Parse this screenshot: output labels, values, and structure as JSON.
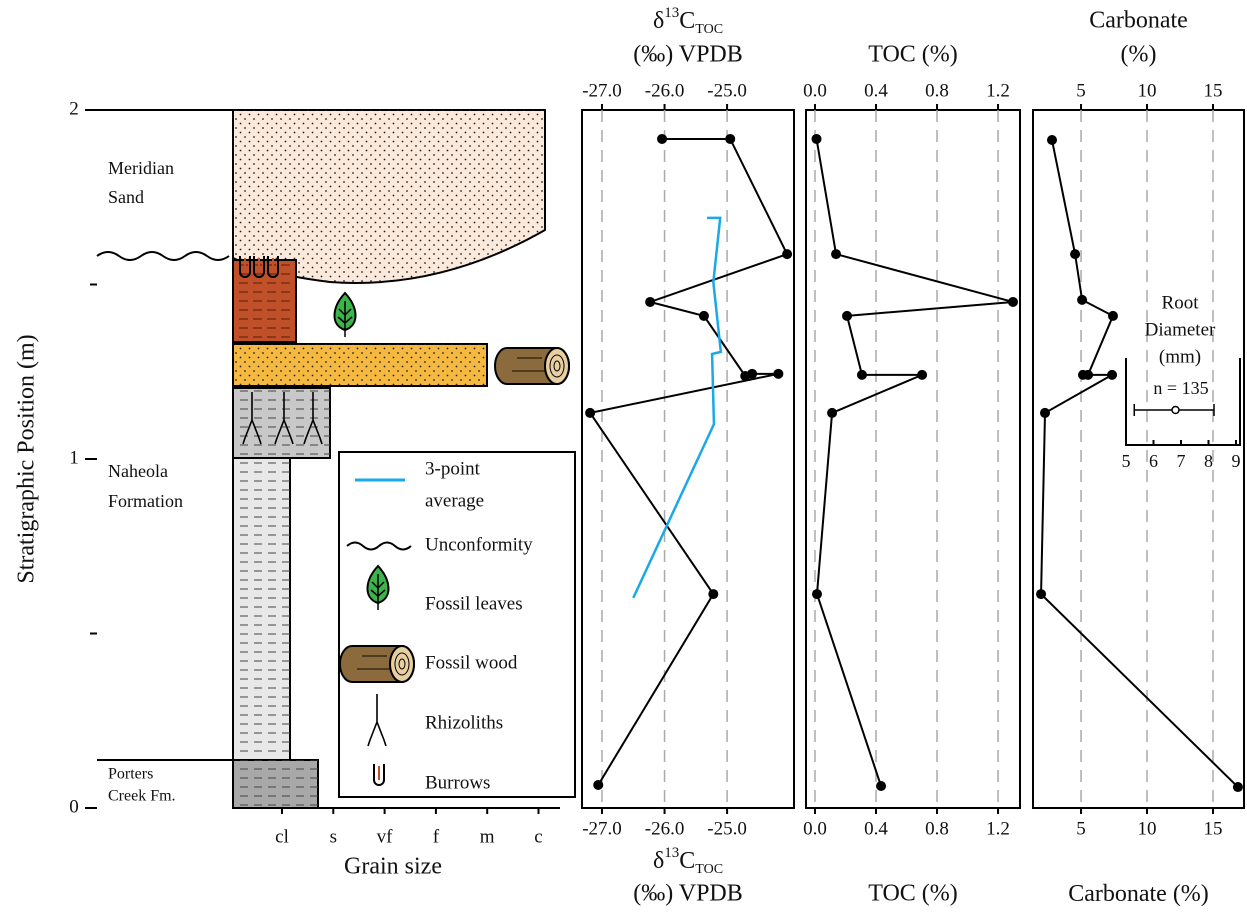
{
  "column": {
    "y_label": "Stratigraphic Position (m)",
    "ylim": [
      0,
      2
    ],
    "yticks": [
      0,
      1,
      2
    ],
    "minor_yticks": [
      0.5,
      1.5
    ],
    "units": [
      {
        "lines": [
          "Meridian",
          "Sand"
        ]
      },
      {
        "lines": [
          "Naheola",
          "Formation"
        ]
      },
      {
        "lines": [
          "Porters",
          "Creek Fm."
        ]
      }
    ],
    "grain_size": {
      "label": "Grain size",
      "categories": [
        "cl",
        "s",
        "vf",
        "f",
        "m",
        "c"
      ]
    }
  },
  "legend": [
    {
      "lines": [
        "3-point",
        "average"
      ]
    },
    {
      "lines": [
        "Unconformity"
      ]
    },
    {
      "lines": [
        "Fossil leaves"
      ]
    },
    {
      "lines": [
        "Fossil wood"
      ]
    },
    {
      "lines": [
        "Rhizoliths"
      ]
    },
    {
      "lines": [
        "Burrows"
      ]
    }
  ],
  "chart_data": [
    {
      "type": "line",
      "title": {
        "symbol": "δ",
        "superscript": "13",
        "base": "C",
        "subscript": "TOC",
        "unit": "(‰) VPDB"
      },
      "xlim": [
        -27.32,
        -23.93
      ],
      "xticks": [
        {
          "value": -27,
          "label": "-27.0"
        },
        {
          "value": -26,
          "label": "-26.0"
        },
        {
          "value": -25,
          "label": "-25.0"
        }
      ],
      "ylim": [
        0,
        2
      ],
      "grid": true,
      "series": [
        {
          "color": "#000000",
          "markers": true,
          "x": [
            -26.04,
            -24.95,
            -24.04,
            -26.23,
            -25.37,
            -24.71,
            -24.6,
            -24.18,
            -27.19,
            -25.22,
            -27.06
          ],
          "y": [
            1.917,
            1.917,
            1.587,
            1.45,
            1.41,
            1.238,
            1.244,
            1.244,
            1.132,
            0.613,
            0.066
          ]
        },
        {
          "color": "#1aa8e8",
          "markers": false,
          "x": [
            -25.32,
            -25.11,
            -25.22,
            -25.1,
            -25.24,
            -25.21,
            -26.5
          ],
          "y": [
            1.691,
            1.691,
            1.507,
            1.307,
            1.301,
            1.1,
            0.602
          ]
        }
      ]
    },
    {
      "type": "line",
      "title": "TOC (%)",
      "xlim": [
        -0.059,
        1.344
      ],
      "xticks": [
        {
          "value": 0,
          "label": "0.0"
        },
        0.4,
        0.8,
        1.2
      ],
      "ylim": [
        0,
        2
      ],
      "grid": true,
      "series": [
        {
          "color": "#000000",
          "markers": true,
          "x": [
            0.01,
            0.138,
            1.298,
            0.21,
            0.308,
            0.702,
            0.112,
            0.013,
            0.433
          ],
          "y": [
            1.917,
            1.587,
            1.45,
            1.41,
            1.241,
            1.241,
            1.132,
            0.613,
            0.063
          ]
        }
      ]
    },
    {
      "type": "line",
      "title": [
        "Carbonate",
        "(%)"
      ],
      "xlim": [
        1.36,
        17.35
      ],
      "xticks": [
        5,
        10,
        15
      ],
      "ylim": [
        0,
        2
      ],
      "grid": true,
      "series": [
        {
          "color": "#000000",
          "markers": true,
          "x": [
            2.8,
            4.55,
            5.08,
            7.42,
            5.53,
            5.15,
            7.35,
            2.27,
            1.97,
            16.89
          ],
          "y": [
            1.914,
            1.587,
            1.456,
            1.41,
            1.241,
            1.241,
            1.241,
            1.132,
            0.613,
            0.06
          ]
        }
      ]
    },
    {
      "type": "errorbar",
      "title_lines": [
        "Root",
        "Diameter",
        "(mm)"
      ],
      "annotation": "n = 135",
      "xlim": [
        5,
        9
      ],
      "xticks": [
        5,
        6,
        7,
        8,
        9
      ],
      "value": 6.8,
      "range": [
        5.3,
        8.2
      ]
    }
  ]
}
